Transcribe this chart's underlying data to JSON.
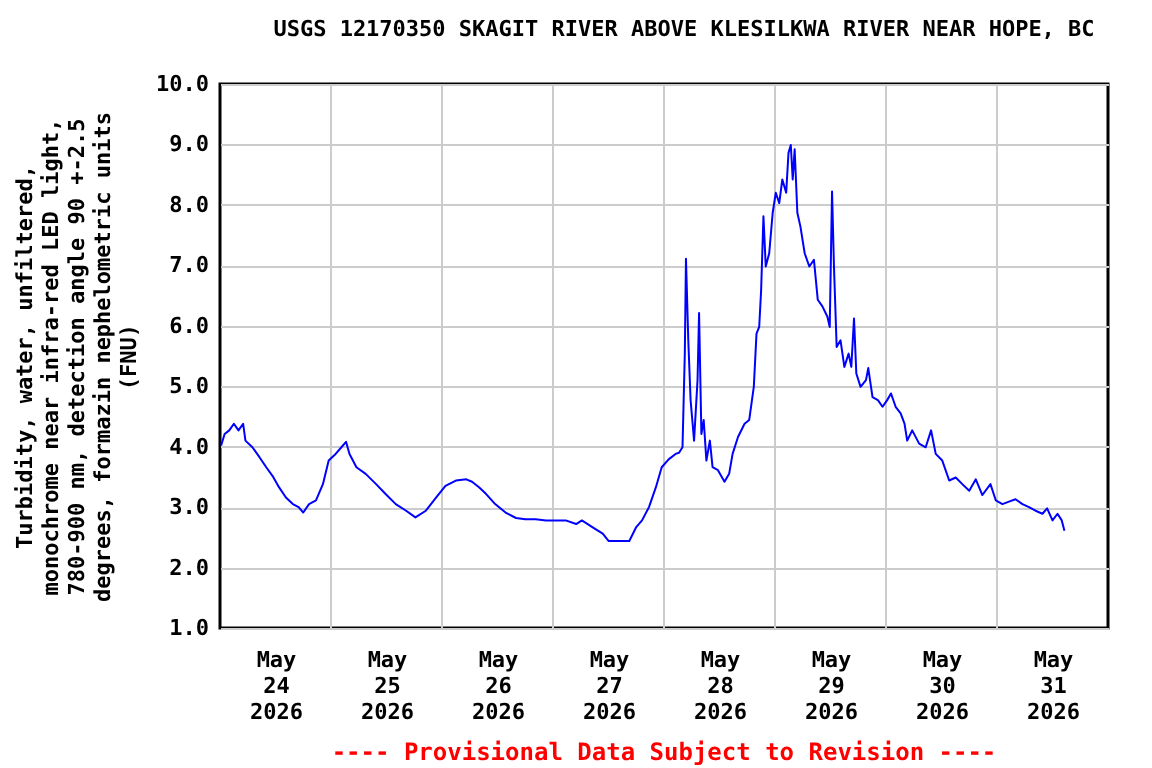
{
  "chart_data": {
    "type": "line",
    "title": "USGS 12170350 SKAGIT RIVER ABOVE KLESILKWA RIVER NEAR HOPE, BC",
    "ylabel": "Turbidity, water, unfiltered,\nmonochrome near infra-red LED light,\n780-900 nm, detection angle 90 +-2.5\ndegrees, formazin nephelometric units\n(FNU)",
    "annotations": [
      "---- Provisional Data Subject to Revision ----"
    ],
    "xlim": [
      "2026-05-24T00:00",
      "2026-06-01T00:00"
    ],
    "xticks": [
      {
        "value": "2026-05-24T12:00",
        "label": "May\n24\n2026"
      },
      {
        "value": "2026-05-25T12:00",
        "label": "May\n25\n2026"
      },
      {
        "value": "2026-05-26T12:00",
        "label": "May\n26\n2026"
      },
      {
        "value": "2026-05-27T12:00",
        "label": "May\n27\n2026"
      },
      {
        "value": "2026-05-28T12:00",
        "label": "May\n28\n2026"
      },
      {
        "value": "2026-05-29T12:00",
        "label": "May\n29\n2026"
      },
      {
        "value": "2026-05-30T12:00",
        "label": "May\n30\n2026"
      },
      {
        "value": "2026-05-31T12:00",
        "label": "May\n31\n2026"
      }
    ],
    "ylim": [
      1,
      10
    ],
    "yticks": [
      {
        "value": 1,
        "label": "1.0"
      },
      {
        "value": 2,
        "label": "2.0"
      },
      {
        "value": 3,
        "label": "3.0"
      },
      {
        "value": 4,
        "label": "4.0"
      },
      {
        "value": 5,
        "label": "5.0"
      },
      {
        "value": 6,
        "label": "6.0"
      },
      {
        "value": 7,
        "label": "7.0"
      },
      {
        "value": 8,
        "label": "8.0"
      },
      {
        "value": 9,
        "label": "9.0"
      },
      {
        "value": 10,
        "label": "10.0"
      }
    ],
    "grid": true,
    "legend": false,
    "marker": "none",
    "line_style": "solid",
    "series": [
      {
        "color": "#0000ff",
        "x": [
          "2026-05-24T00:15",
          "2026-05-24T01:00",
          "2026-05-24T02:00",
          "2026-05-24T03:00",
          "2026-05-24T04:00",
          "2026-05-24T05:00",
          "2026-05-24T05:30",
          "2026-05-24T07:00",
          "2026-05-24T08:30",
          "2026-05-24T10:00",
          "2026-05-24T11:30",
          "2026-05-24T12:45",
          "2026-05-24T14:15",
          "2026-05-24T15:45",
          "2026-05-24T17:00",
          "2026-05-24T18:00",
          "2026-05-24T19:15",
          "2026-05-24T20:45",
          "2026-05-24T22:15",
          "2026-05-24T23:30",
          "2026-05-25T01:00",
          "2026-05-25T02:15",
          "2026-05-25T03:15",
          "2026-05-25T04:00",
          "2026-05-25T05:30",
          "2026-05-25T07:30",
          "2026-05-25T09:45",
          "2026-05-25T11:45",
          "2026-05-25T14:00",
          "2026-05-25T16:15",
          "2026-05-25T18:15",
          "2026-05-25T20:30",
          "2026-05-25T22:45",
          "2026-05-26T00:45",
          "2026-05-26T03:00",
          "2026-05-26T05:15",
          "2026-05-26T06:30",
          "2026-05-26T08:00",
          "2026-05-26T09:30",
          "2026-05-26T11:30",
          "2026-05-26T13:45",
          "2026-05-26T16:00",
          "2026-05-26T18:00",
          "2026-05-26T20:15",
          "2026-05-26T22:30",
          "2026-05-27T00:30",
          "2026-05-27T02:45",
          "2026-05-27T05:00",
          "2026-05-27T06:15",
          "2026-05-27T08:30",
          "2026-05-27T10:45",
          "2026-05-27T12:00",
          "2026-05-27T14:15",
          "2026-05-27T16:30",
          "2026-05-27T18:00",
          "2026-05-27T19:15",
          "2026-05-27T20:45",
          "2026-05-27T22:15",
          "2026-05-27T23:30",
          "2026-05-28T01:00",
          "2026-05-28T02:30",
          "2026-05-28T03:15",
          "2026-05-28T04:00",
          "2026-05-28T04:30",
          "2026-05-28T04:45",
          "2026-05-28T05:15",
          "2026-05-28T05:45",
          "2026-05-28T06:30",
          "2026-05-28T07:15",
          "2026-05-28T07:35",
          "2026-05-28T08:05",
          "2026-05-28T08:35",
          "2026-05-28T09:10",
          "2026-05-28T09:55",
          "2026-05-28T10:30",
          "2026-05-28T11:40",
          "2026-05-28T13:05",
          "2026-05-28T14:05",
          "2026-05-28T14:50",
          "2026-05-28T16:00",
          "2026-05-28T17:25",
          "2026-05-28T18:25",
          "2026-05-28T19:25",
          "2026-05-28T20:00",
          "2026-05-28T20:35",
          "2026-05-28T21:00",
          "2026-05-28T21:30",
          "2026-05-28T22:00",
          "2026-05-28T22:45",
          "2026-05-28T23:30",
          "2026-05-29T00:10",
          "2026-05-29T00:55",
          "2026-05-29T01:35",
          "2026-05-29T02:25",
          "2026-05-29T02:55",
          "2026-05-29T03:25",
          "2026-05-29T03:50",
          "2026-05-29T04:15",
          "2026-05-29T04:50",
          "2026-05-29T05:30",
          "2026-05-29T06:25",
          "2026-05-29T07:25",
          "2026-05-29T08:25",
          "2026-05-29T09:15",
          "2026-05-29T10:15",
          "2026-05-29T11:20",
          "2026-05-29T11:50",
          "2026-05-29T12:20",
          "2026-05-29T12:45",
          "2026-05-29T13:20",
          "2026-05-29T14:10",
          "2026-05-29T15:00",
          "2026-05-29T15:55",
          "2026-05-29T16:30",
          "2026-05-29T17:05",
          "2026-05-29T17:35",
          "2026-05-29T18:30",
          "2026-05-29T19:40",
          "2026-05-29T20:10",
          "2026-05-29T21:05",
          "2026-05-29T22:15",
          "2026-05-29T23:15",
          "2026-05-30T00:15",
          "2026-05-30T01:05",
          "2026-05-30T02:05",
          "2026-05-30T03:10",
          "2026-05-30T04:00",
          "2026-05-30T04:35",
          "2026-05-30T05:40",
          "2026-05-30T07:10",
          "2026-05-30T08:35",
          "2026-05-30T09:45",
          "2026-05-30T10:45",
          "2026-05-30T12:10",
          "2026-05-30T13:40",
          "2026-05-30T15:05",
          "2026-05-30T16:30",
          "2026-05-30T18:00",
          "2026-05-30T19:25",
          "2026-05-30T20:50",
          "2026-05-30T22:35",
          "2026-05-30T23:45",
          "2026-05-31T01:10",
          "2026-05-31T02:35",
          "2026-05-31T04:00",
          "2026-05-31T05:30",
          "2026-05-31T06:55",
          "2026-05-31T08:20",
          "2026-05-31T09:50",
          "2026-05-31T10:50",
          "2026-05-31T12:00",
          "2026-05-31T13:05",
          "2026-05-31T14:00",
          "2026-05-31T14:35"
        ],
        "values": [
          4.02,
          4.21,
          4.27,
          4.38,
          4.27,
          4.38,
          4.1,
          3.99,
          3.83,
          3.66,
          3.5,
          3.33,
          3.16,
          3.05,
          3.0,
          2.91,
          3.05,
          3.11,
          3.38,
          3.77,
          3.88,
          3.99,
          4.08,
          3.88,
          3.66,
          3.55,
          3.38,
          3.22,
          3.05,
          2.94,
          2.83,
          2.94,
          3.16,
          3.35,
          3.44,
          3.46,
          3.42,
          3.33,
          3.22,
          3.05,
          2.91,
          2.82,
          2.8,
          2.8,
          2.78,
          2.78,
          2.78,
          2.72,
          2.78,
          2.67,
          2.56,
          2.44,
          2.44,
          2.44,
          2.67,
          2.78,
          3.0,
          3.33,
          3.66,
          3.79,
          3.88,
          3.9,
          3.99,
          5.54,
          7.11,
          5.76,
          4.77,
          4.1,
          5.1,
          6.21,
          4.21,
          4.44,
          3.77,
          4.1,
          3.66,
          3.61,
          3.42,
          3.55,
          3.88,
          4.16,
          4.38,
          4.44,
          4.99,
          5.87,
          5.98,
          6.59,
          7.81,
          6.98,
          7.2,
          7.87,
          8.2,
          8.03,
          8.42,
          8.2,
          8.86,
          8.99,
          8.42,
          8.92,
          7.87,
          7.64,
          7.2,
          6.98,
          7.09,
          6.43,
          6.32,
          6.15,
          5.98,
          8.22,
          6.98,
          5.65,
          5.76,
          5.32,
          5.54,
          5.32,
          6.12,
          5.21,
          4.99,
          5.1,
          5.3,
          4.82,
          4.77,
          4.66,
          4.77,
          4.88,
          4.66,
          4.55,
          4.38,
          4.1,
          4.27,
          4.05,
          3.99,
          4.27,
          3.88,
          3.77,
          3.44,
          3.49,
          3.38,
          3.27,
          3.46,
          3.2,
          3.38,
          3.11,
          3.05,
          3.09,
          3.13,
          3.05,
          3.0,
          2.94,
          2.89,
          2.98,
          2.78,
          2.89,
          2.78,
          2.61
        ]
      }
    ]
  }
}
